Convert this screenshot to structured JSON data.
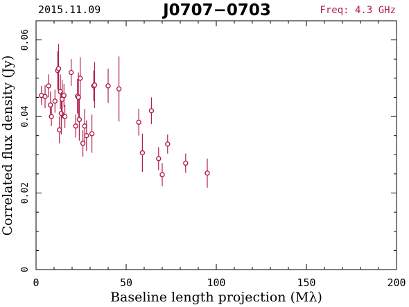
{
  "header": {
    "date": "2015.11.09",
    "source": "J0707−0703",
    "freq": "Freq: 4.3 GHz"
  },
  "colors": {
    "axes": "#000000",
    "data": "#b0204a",
    "freq_text": "#b0204a"
  },
  "chart_data": {
    "type": "scatter",
    "title": "J0707−0703",
    "xlabel": "Baseline length projection (Mλ)",
    "ylabel": "Correlated flux density (Jy)",
    "xlim": [
      0,
      200
    ],
    "ylim": [
      0,
      0.065
    ],
    "x_ticks": [
      0,
      50,
      100,
      150,
      200
    ],
    "y_ticks": [
      0,
      0.02,
      0.04,
      0.06
    ],
    "x_tick_labels": [
      "0",
      "50",
      "100",
      "150",
      "200"
    ],
    "y_tick_labels": [
      "0",
      "0.02",
      "0.04",
      "0.06"
    ],
    "grid": false,
    "series": [
      {
        "points": [
          {
            "x": 3,
            "y": 0.0455,
            "err": 0.0025
          },
          {
            "x": 5,
            "y": 0.0452,
            "err": 0.003
          },
          {
            "x": 7,
            "y": 0.048,
            "err": 0.003
          },
          {
            "x": 8,
            "y": 0.043,
            "err": 0.0035
          },
          {
            "x": 8.5,
            "y": 0.04,
            "err": 0.0025
          },
          {
            "x": 10.5,
            "y": 0.044,
            "err": 0.003
          },
          {
            "x": 12,
            "y": 0.052,
            "err": 0.005
          },
          {
            "x": 12.5,
            "y": 0.0525,
            "err": 0.0065
          },
          {
            "x": 13,
            "y": 0.0365,
            "err": 0.0035
          },
          {
            "x": 13.5,
            "y": 0.0465,
            "err": 0.0045
          },
          {
            "x": 14,
            "y": 0.0408,
            "err": 0.0055
          },
          {
            "x": 14.5,
            "y": 0.0445,
            "err": 0.005
          },
          {
            "x": 15.5,
            "y": 0.0455,
            "err": 0.003
          },
          {
            "x": 16,
            "y": 0.04,
            "err": 0.003
          },
          {
            "x": 19.5,
            "y": 0.0515,
            "err": 0.0035
          },
          {
            "x": 22,
            "y": 0.0375,
            "err": 0.003
          },
          {
            "x": 23,
            "y": 0.0453,
            "err": 0.0045
          },
          {
            "x": 23.5,
            "y": 0.045,
            "err": 0.0065
          },
          {
            "x": 24,
            "y": 0.0392,
            "err": 0.0055
          },
          {
            "x": 24.5,
            "y": 0.05,
            "err": 0.0055
          },
          {
            "x": 26,
            "y": 0.033,
            "err": 0.0035
          },
          {
            "x": 27,
            "y": 0.0375,
            "err": 0.0045
          },
          {
            "x": 28,
            "y": 0.035,
            "err": 0.004
          },
          {
            "x": 31,
            "y": 0.0355,
            "err": 0.005
          },
          {
            "x": 32,
            "y": 0.048,
            "err": 0.004
          },
          {
            "x": 32.5,
            "y": 0.0482,
            "err": 0.006
          },
          {
            "x": 40,
            "y": 0.048,
            "err": 0.0045
          },
          {
            "x": 46,
            "y": 0.0472,
            "err": 0.0085
          },
          {
            "x": 57,
            "y": 0.0385,
            "err": 0.0035
          },
          {
            "x": 59,
            "y": 0.0305,
            "err": 0.005
          },
          {
            "x": 64,
            "y": 0.0415,
            "err": 0.0035
          },
          {
            "x": 68,
            "y": 0.029,
            "err": 0.003
          },
          {
            "x": 70,
            "y": 0.0248,
            "err": 0.003
          },
          {
            "x": 73,
            "y": 0.0328,
            "err": 0.0025
          },
          {
            "x": 83,
            "y": 0.0278,
            "err": 0.0025
          },
          {
            "x": 95,
            "y": 0.0252,
            "err": 0.0038
          }
        ]
      }
    ]
  }
}
